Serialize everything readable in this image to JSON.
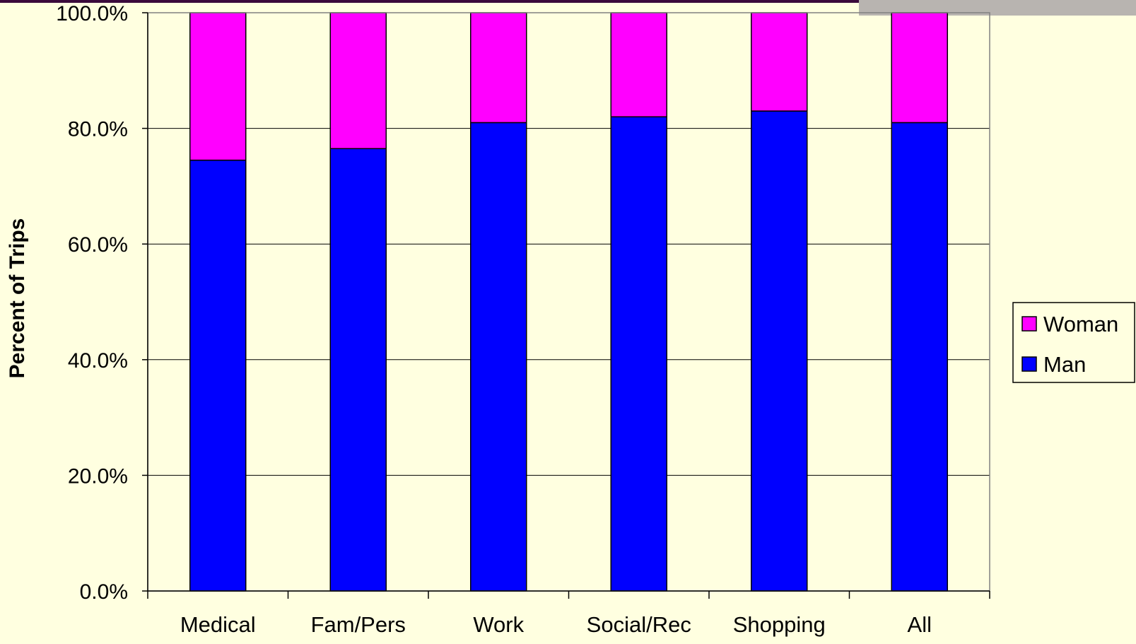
{
  "chart_data": {
    "type": "bar",
    "stacked": true,
    "categories": [
      "Medical",
      "Fam/Pers",
      "Work",
      "Social/Rec",
      "Shopping",
      "All"
    ],
    "series": [
      {
        "name": "Man",
        "values": [
          74.5,
          76.5,
          81.0,
          82.0,
          83.0,
          81.0
        ]
      },
      {
        "name": "Woman",
        "values": [
          25.5,
          23.5,
          19.0,
          18.0,
          17.0,
          19.0
        ]
      }
    ],
    "ylabel": "Percent of Trips",
    "ylim": [
      0,
      100
    ],
    "yticks": [
      "0.0%",
      "20.0%",
      "40.0%",
      "60.0%",
      "80.0%",
      "100.0%"
    ],
    "grid": true,
    "legend_position": "right",
    "legend_order": [
      "Woman",
      "Man"
    ],
    "colors": {
      "Man": "#0000ff",
      "Woman": "#ff00ff",
      "background": "#ffffe0",
      "plot_background": "#ffffe0",
      "top_band": "#3b0a3b",
      "corner_band": "#b8b4b0"
    }
  }
}
